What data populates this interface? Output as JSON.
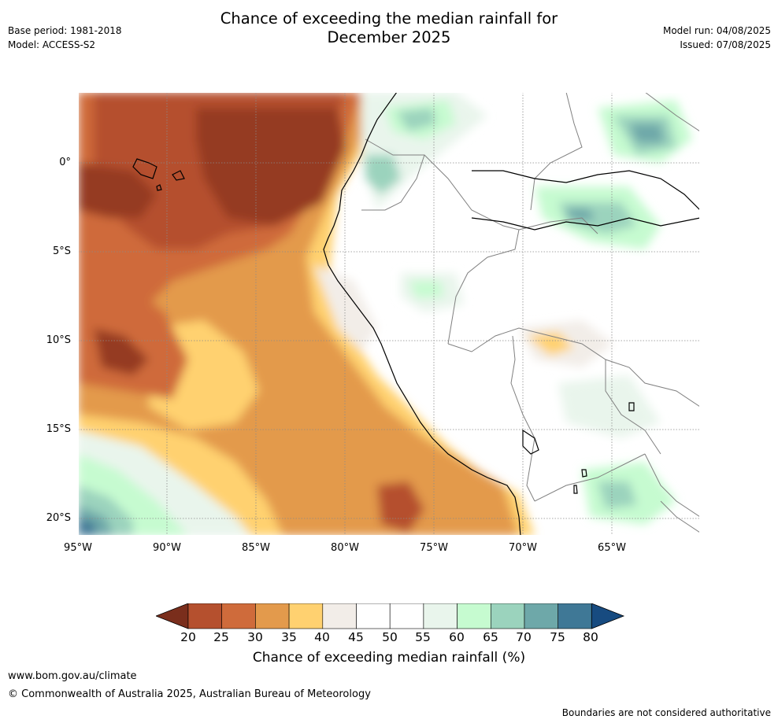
{
  "header": {
    "title_line1": "Chance of exceeding the median rainfall for",
    "title_line2": "December 2025",
    "base_period": "Base period: 1981-2018",
    "model": "Model: ACCESS-S2",
    "model_run": "Model run: 04/08/2025",
    "issued": "Issued: 07/08/2025"
  },
  "map": {
    "lat_labels": [
      "0°",
      "5°S",
      "10°S",
      "15°S",
      "20°S"
    ],
    "lon_labels": [
      "95°W",
      "90°W",
      "85°W",
      "80°W",
      "75°W",
      "70°W",
      "65°W"
    ],
    "gridlines": "dotted",
    "palette": {
      "20": "#953a23",
      "25": "#b5502e",
      "30": "#cf6b3b",
      "35": "#e39a4c",
      "40": "#ffd170",
      "45": "#f2ede8",
      "50": "#ffffff",
      "55": "#ffffff",
      "60": "#e9f5ec",
      "65": "#c6fbd0",
      "70": "#9bd3bd",
      "75": "#6ea8a9",
      "80": "#3f7896",
      "80plus": "#174b80"
    },
    "land_line_color": "#000000",
    "border_line_color": "#808080"
  },
  "colorbar": {
    "ticks": [
      "20",
      "25",
      "30",
      "35",
      "40",
      "45",
      "50",
      "55",
      "60",
      "65",
      "70",
      "75",
      "80"
    ],
    "label": "Chance of exceeding median rainfall (%)"
  },
  "footer": {
    "url": "www.bom.gov.au/climate",
    "copyright": "© Commonwealth of Australia 2025, Australian Bureau of Meteorology",
    "disclaimer": "Boundaries are not considered authoritative"
  }
}
